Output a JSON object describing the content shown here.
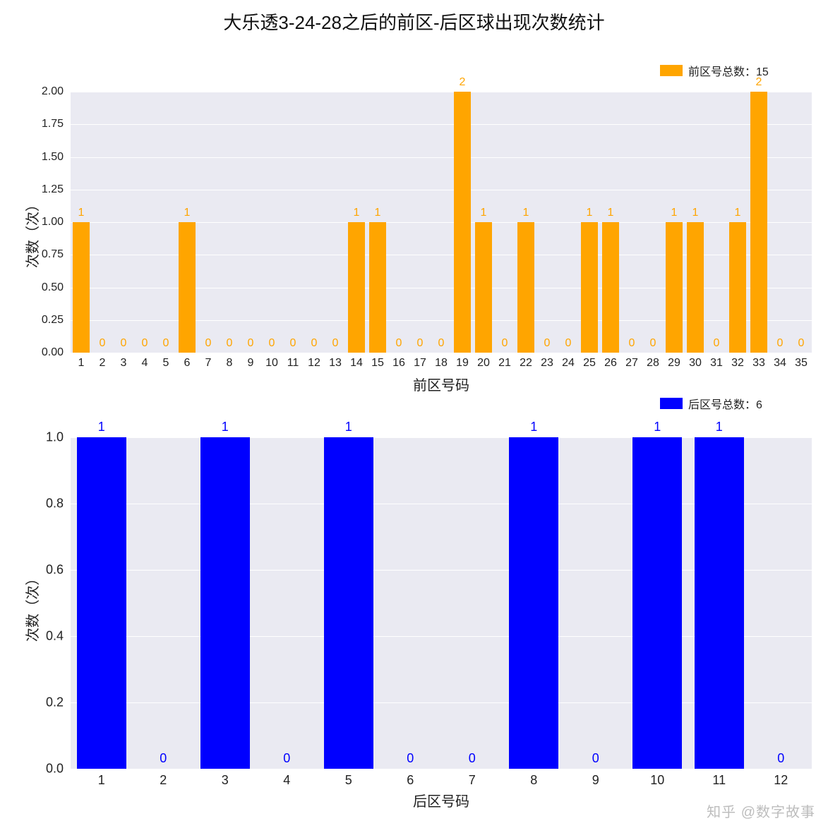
{
  "title": "大乐透3-24-28之后的前区-后区球出现次数统计",
  "watermark": "知乎 @数字故事",
  "top_chart": {
    "type": "bar",
    "legend_label": "前区号总数：15",
    "xlabel": "前区号码",
    "ylabel": "次数（次）",
    "categories": [
      "1",
      "2",
      "3",
      "4",
      "5",
      "6",
      "7",
      "8",
      "9",
      "10",
      "11",
      "12",
      "13",
      "14",
      "15",
      "16",
      "17",
      "18",
      "19",
      "20",
      "21",
      "22",
      "23",
      "24",
      "25",
      "26",
      "27",
      "28",
      "29",
      "30",
      "31",
      "32",
      "33",
      "34",
      "35"
    ],
    "values": [
      1,
      0,
      0,
      0,
      0,
      1,
      0,
      0,
      0,
      0,
      0,
      0,
      0,
      1,
      1,
      0,
      0,
      0,
      2,
      1,
      0,
      1,
      0,
      0,
      1,
      1,
      0,
      0,
      1,
      1,
      0,
      1,
      2,
      0,
      0
    ],
    "bar_color": "#ffa500",
    "label_color": "#ffa500",
    "background_color": "#eaeaf2",
    "grid_color": "#ffffff",
    "ylim_min": 0.0,
    "ylim_max": 2.0,
    "ytick_step": 0.25,
    "yticks": [
      "0.00",
      "0.25",
      "0.50",
      "0.75",
      "1.00",
      "1.25",
      "1.50",
      "1.75",
      "2.00"
    ],
    "bar_width": 0.8,
    "label_fontsize": 16,
    "tick_fontsize": 16,
    "axis_label_fontsize": 20,
    "legend_swatch_color": "#ffa500"
  },
  "bot_chart": {
    "type": "bar",
    "legend_label": "后区号总数：6",
    "xlabel": "后区号码",
    "ylabel": "次数（次）",
    "categories": [
      "1",
      "2",
      "3",
      "4",
      "5",
      "6",
      "7",
      "8",
      "9",
      "10",
      "11",
      "12"
    ],
    "values": [
      1,
      0,
      1,
      0,
      1,
      0,
      0,
      1,
      0,
      1,
      1,
      0
    ],
    "bar_color": "#0000ff",
    "label_color": "#0000ff",
    "background_color": "#eaeaf2",
    "grid_color": "#ffffff",
    "ylim_min": 0.0,
    "ylim_max": 1.0,
    "ytick_step": 0.2,
    "yticks": [
      "0.0",
      "0.2",
      "0.4",
      "0.6",
      "0.8",
      "1.0"
    ],
    "bar_width": 0.8,
    "label_fontsize": 18,
    "tick_fontsize": 18,
    "axis_label_fontsize": 20,
    "legend_swatch_color": "#0000ff"
  }
}
